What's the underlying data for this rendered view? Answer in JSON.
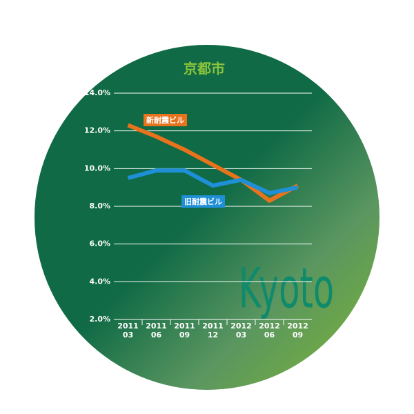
{
  "chart_data": {
    "type": "line",
    "title": "京都市",
    "watermark": "Kyoto",
    "categories": [
      "2011\n03",
      "2011\n06",
      "2011\n09",
      "2011\n12",
      "2012\n03",
      "2012\n06",
      "2012\n09"
    ],
    "series": [
      {
        "name": "新耐震ビル",
        "color": "#e8731c",
        "values": [
          12.3,
          11.7,
          11.0,
          10.2,
          9.4,
          8.3,
          9.1
        ]
      },
      {
        "name": "旧耐震ビル",
        "color": "#1f8fd6",
        "values": [
          9.5,
          9.9,
          9.9,
          9.1,
          9.4,
          8.7,
          9.0
        ]
      }
    ],
    "ylim": [
      2,
      14
    ],
    "yticks": [
      {
        "value": 2,
        "label": "2.0%"
      },
      {
        "value": 4,
        "label": "4.0%"
      },
      {
        "value": 6,
        "label": "6.0%"
      },
      {
        "value": 8,
        "label": "8.0%"
      },
      {
        "value": 10,
        "label": "10.0%"
      },
      {
        "value": 12,
        "label": "12.0%"
      },
      {
        "value": 14,
        "label": "14.0%"
      }
    ],
    "grid": true
  }
}
